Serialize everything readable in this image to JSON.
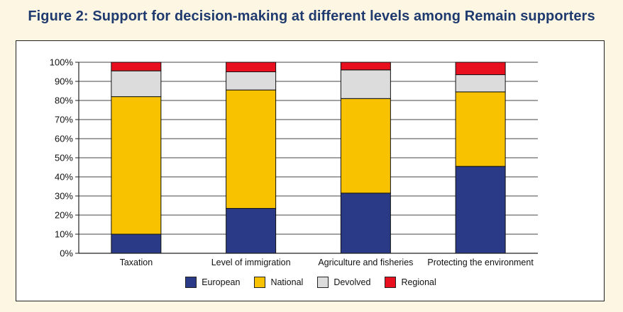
{
  "title": "Figure 2: Support for decision-making at different levels among Remain supporters",
  "colors": {
    "background": "#fdf6e3",
    "title": "#1f3a6e",
    "European": "#2b3a87",
    "National": "#f8c200",
    "Devolved": "#dcdcdc",
    "Regional": "#e8101e"
  },
  "chart_data": {
    "type": "bar",
    "stacked": true,
    "title": "Figure 2: Support for decision-making at different levels among Remain supporters",
    "xlabel": "",
    "ylabel": "",
    "ylim": [
      0,
      100
    ],
    "yticks": [
      "0%",
      "10%",
      "20%",
      "30%",
      "40%",
      "50%",
      "60%",
      "70%",
      "80%",
      "90%",
      "100%"
    ],
    "grid": true,
    "legend_position": "bottom",
    "categories": [
      "Taxation",
      "Level of immigration",
      "Agriculture and fisheries",
      "Protecting the environment"
    ],
    "series": [
      {
        "name": "European",
        "values": [
          10,
          23.5,
          31.5,
          45.5
        ]
      },
      {
        "name": "National",
        "values": [
          72,
          62,
          49.5,
          39
        ]
      },
      {
        "name": "Devolved",
        "values": [
          13.5,
          9.5,
          15,
          9
        ]
      },
      {
        "name": "Regional",
        "values": [
          4.5,
          5,
          4,
          6.5
        ]
      }
    ]
  }
}
